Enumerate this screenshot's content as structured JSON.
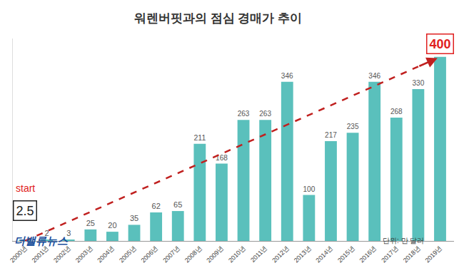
{
  "chart_data": {
    "type": "bar",
    "title": "워렌버핏과의 점심 경매가 추이",
    "subtitle": "단위: 만 달러",
    "logo": "더밸류뉴스",
    "annotations": [
      "start"
    ],
    "categories": [
      "2000년",
      "2001년",
      "2002년",
      "2003년",
      "2004년",
      "2005년",
      "2006년",
      "2007년",
      "2008년",
      "2009년",
      "2010년",
      "2011년",
      "2012년",
      "2013년",
      "2014년",
      "2015년",
      "2016년",
      "2017년",
      "2018년",
      "2019년"
    ],
    "values": [
      2.5,
      2,
      3,
      25,
      20,
      35,
      62,
      65,
      211,
      168,
      263,
      263,
      346,
      100,
      217,
      235,
      346,
      268,
      330,
      400
    ],
    "color": "#3db5b0",
    "ylim": [
      0,
      440
    ],
    "data_labels": true,
    "tick_labels": "x",
    "grid": false
  }
}
